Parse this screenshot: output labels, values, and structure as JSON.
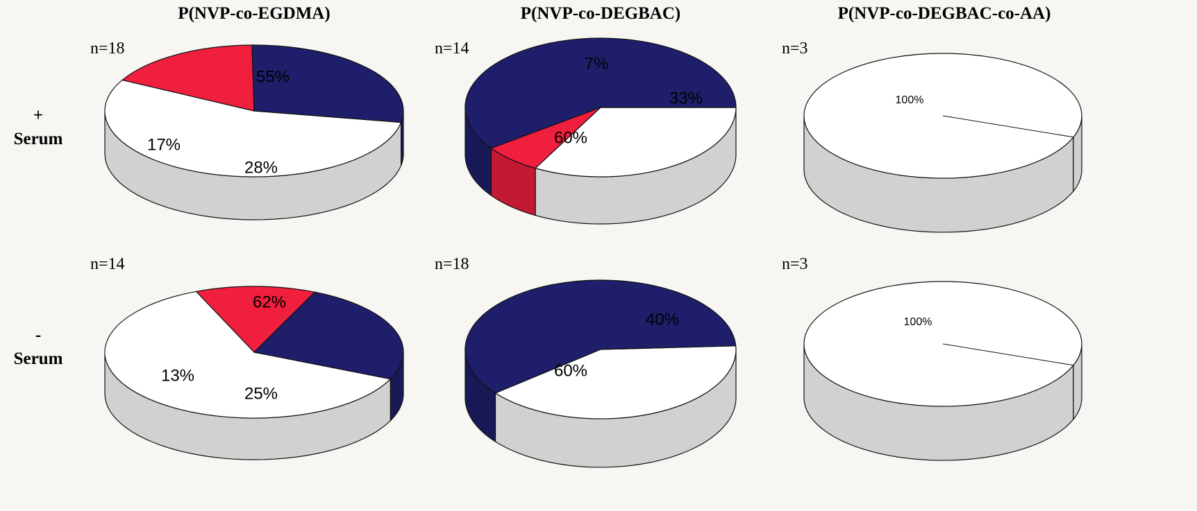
{
  "colors": {
    "white": "#ffffff",
    "red": "#ef1f3d",
    "navy": "#1e1e6b",
    "outline": "#111111"
  },
  "row_labels": [
    {
      "sign": "+",
      "word": "Serum"
    },
    {
      "sign": "-",
      "word": "Serum"
    }
  ],
  "chart_data": [
    {
      "type": "pie",
      "title": "P(NVP-co-EGDMA)",
      "row": "+ Serum",
      "n_label": "n=18",
      "slices": [
        {
          "value": 55,
          "label": "55%",
          "color": "#ffffff"
        },
        {
          "value": 17,
          "label": "17%",
          "color": "#ef1f3d"
        },
        {
          "value": 28,
          "label": "28%",
          "color": "#1e1e6b"
        }
      ]
    },
    {
      "type": "pie",
      "title": "P(NVP-co-DEGBAC)",
      "row": "+ Serum",
      "n_label": "n=14",
      "slices": [
        {
          "value": 33,
          "label": "33%",
          "color": "#ffffff"
        },
        {
          "value": 7,
          "label": "7%",
          "color": "#ef1f3d"
        },
        {
          "value": 60,
          "label": "60%",
          "color": "#1e1e6b"
        }
      ]
    },
    {
      "type": "pie",
      "title": "P(NVP-co-DEGBAC-co-AA)",
      "row": "+ Serum",
      "n_label": "n=3",
      "slices": [
        {
          "value": 100,
          "label": "100%",
          "color": "#ffffff"
        }
      ]
    },
    {
      "type": "pie",
      "title": "P(NVP-co-EGDMA)",
      "row": "- Serum",
      "n_label": "n=14",
      "slices": [
        {
          "value": 62,
          "label": "62%",
          "color": "#ffffff"
        },
        {
          "value": 13,
          "label": "13%",
          "color": "#ef1f3d"
        },
        {
          "value": 25,
          "label": "25%",
          "color": "#1e1e6b"
        }
      ]
    },
    {
      "type": "pie",
      "title": "P(NVP-co-DEGBAC)",
      "row": "- Serum",
      "n_label": "n=18",
      "slices": [
        {
          "value": 40,
          "label": "40%",
          "color": "#ffffff"
        },
        {
          "value": 60,
          "label": "60%",
          "color": "#1e1e6b"
        }
      ]
    },
    {
      "type": "pie",
      "title": "P(NVP-co-DEGBAC-co-AA)",
      "row": "- Serum",
      "n_label": "n=3",
      "slices": [
        {
          "value": 100,
          "label": "100%",
          "color": "#ffffff"
        }
      ]
    }
  ]
}
